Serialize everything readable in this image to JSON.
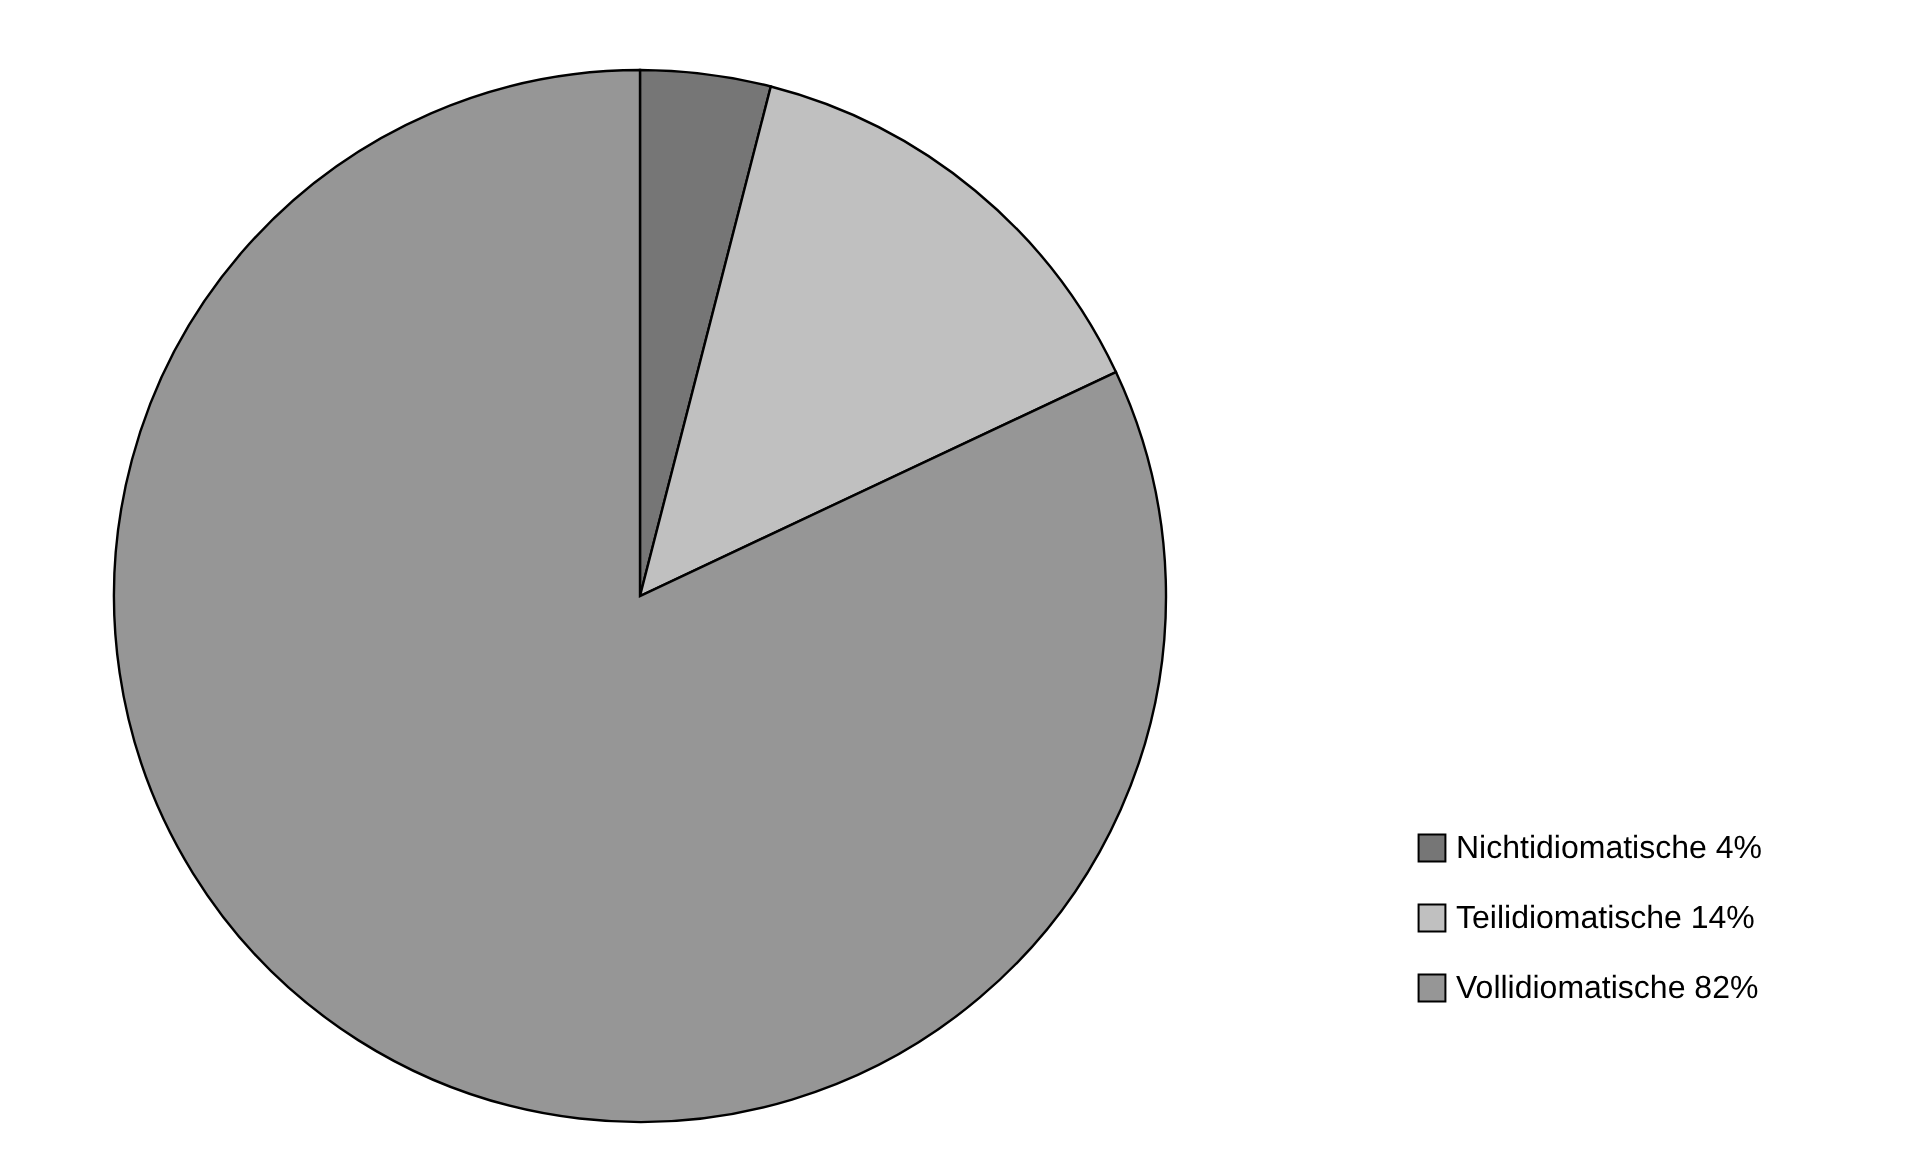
{
  "chart_data": {
    "type": "pie",
    "categories": [
      "Nichtidiomatische  4%",
      "Teilidiomatische  14%",
      "Vollidiomatische  82%"
    ],
    "values": [
      4,
      14,
      82
    ],
    "colors": [
      "#767676",
      "#c0c0c0",
      "#969696"
    ],
    "legend": "bottom right"
  }
}
